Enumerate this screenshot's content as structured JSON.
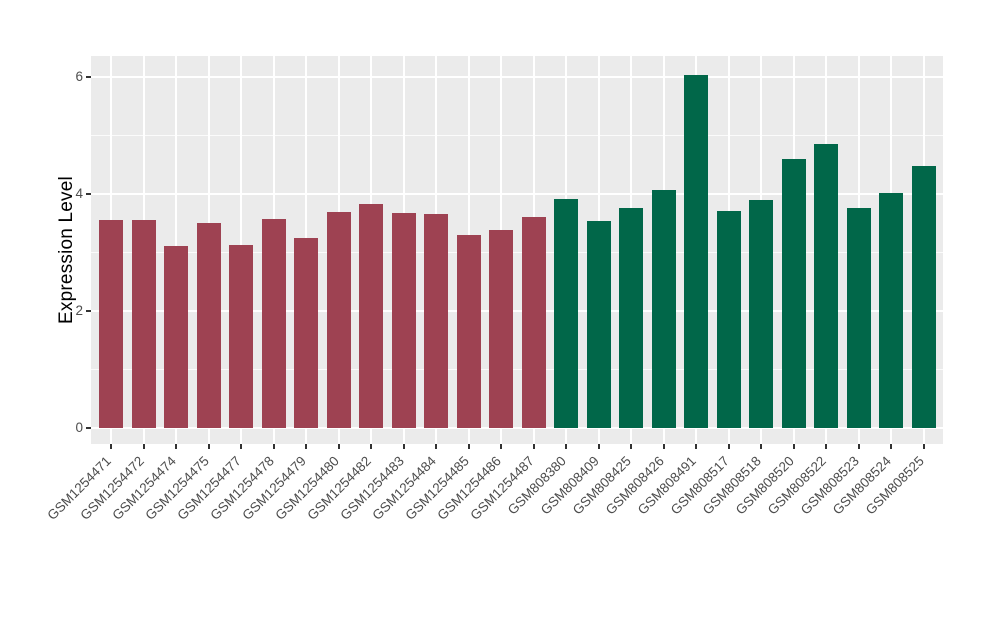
{
  "chart_data": {
    "type": "bar",
    "title": "",
    "xlabel": "",
    "ylabel": "Expression Level",
    "yticks": [
      0,
      2,
      4,
      6
    ],
    "ytick_labels": [
      "0",
      "2",
      "4",
      "6"
    ],
    "minor_ticks": [
      1,
      3,
      5
    ],
    "ylim_display": [
      -0.27,
      6.35
    ],
    "grid": "major+minor horizontal, major vertical at bar centers",
    "legend": "none",
    "panel_bg": "#EBEBEB",
    "grid_color": "#FFFFFF",
    "tick_color": "#333333",
    "group_colors": {
      "left_group": "#9E4252",
      "right_group": "#016749"
    },
    "bars": [
      {
        "label": "GSM1254471",
        "value": 3.56,
        "group": "left_group"
      },
      {
        "label": "GSM1254472",
        "value": 3.56,
        "group": "left_group"
      },
      {
        "label": "GSM1254474",
        "value": 3.11,
        "group": "left_group"
      },
      {
        "label": "GSM1254475",
        "value": 3.5,
        "group": "left_group"
      },
      {
        "label": "GSM1254477",
        "value": 3.12,
        "group": "left_group"
      },
      {
        "label": "GSM1254478",
        "value": 3.57,
        "group": "left_group"
      },
      {
        "label": "GSM1254479",
        "value": 3.25,
        "group": "left_group"
      },
      {
        "label": "GSM1254480",
        "value": 3.68,
        "group": "left_group"
      },
      {
        "label": "GSM1254482",
        "value": 3.83,
        "group": "left_group"
      },
      {
        "label": "GSM1254483",
        "value": 3.67,
        "group": "left_group"
      },
      {
        "label": "GSM1254484",
        "value": 3.66,
        "group": "left_group"
      },
      {
        "label": "GSM1254485",
        "value": 3.3,
        "group": "left_group"
      },
      {
        "label": "GSM1254486",
        "value": 3.38,
        "group": "left_group"
      },
      {
        "label": "GSM1254487",
        "value": 3.6,
        "group": "left_group"
      },
      {
        "label": "GSM808380",
        "value": 3.91,
        "group": "right_group"
      },
      {
        "label": "GSM808409",
        "value": 3.53,
        "group": "right_group"
      },
      {
        "label": "GSM808425",
        "value": 3.75,
        "group": "right_group"
      },
      {
        "label": "GSM808426",
        "value": 4.06,
        "group": "right_group"
      },
      {
        "label": "GSM808491",
        "value": 6.03,
        "group": "right_group"
      },
      {
        "label": "GSM808517",
        "value": 3.71,
        "group": "right_group"
      },
      {
        "label": "GSM808518",
        "value": 3.89,
        "group": "right_group"
      },
      {
        "label": "GSM808520",
        "value": 4.6,
        "group": "right_group"
      },
      {
        "label": "GSM808522",
        "value": 4.85,
        "group": "right_group"
      },
      {
        "label": "GSM808523",
        "value": 3.76,
        "group": "right_group"
      },
      {
        "label": "GSM808524",
        "value": 4.02,
        "group": "right_group"
      },
      {
        "label": "GSM808525",
        "value": 4.48,
        "group": "right_group"
      }
    ]
  }
}
